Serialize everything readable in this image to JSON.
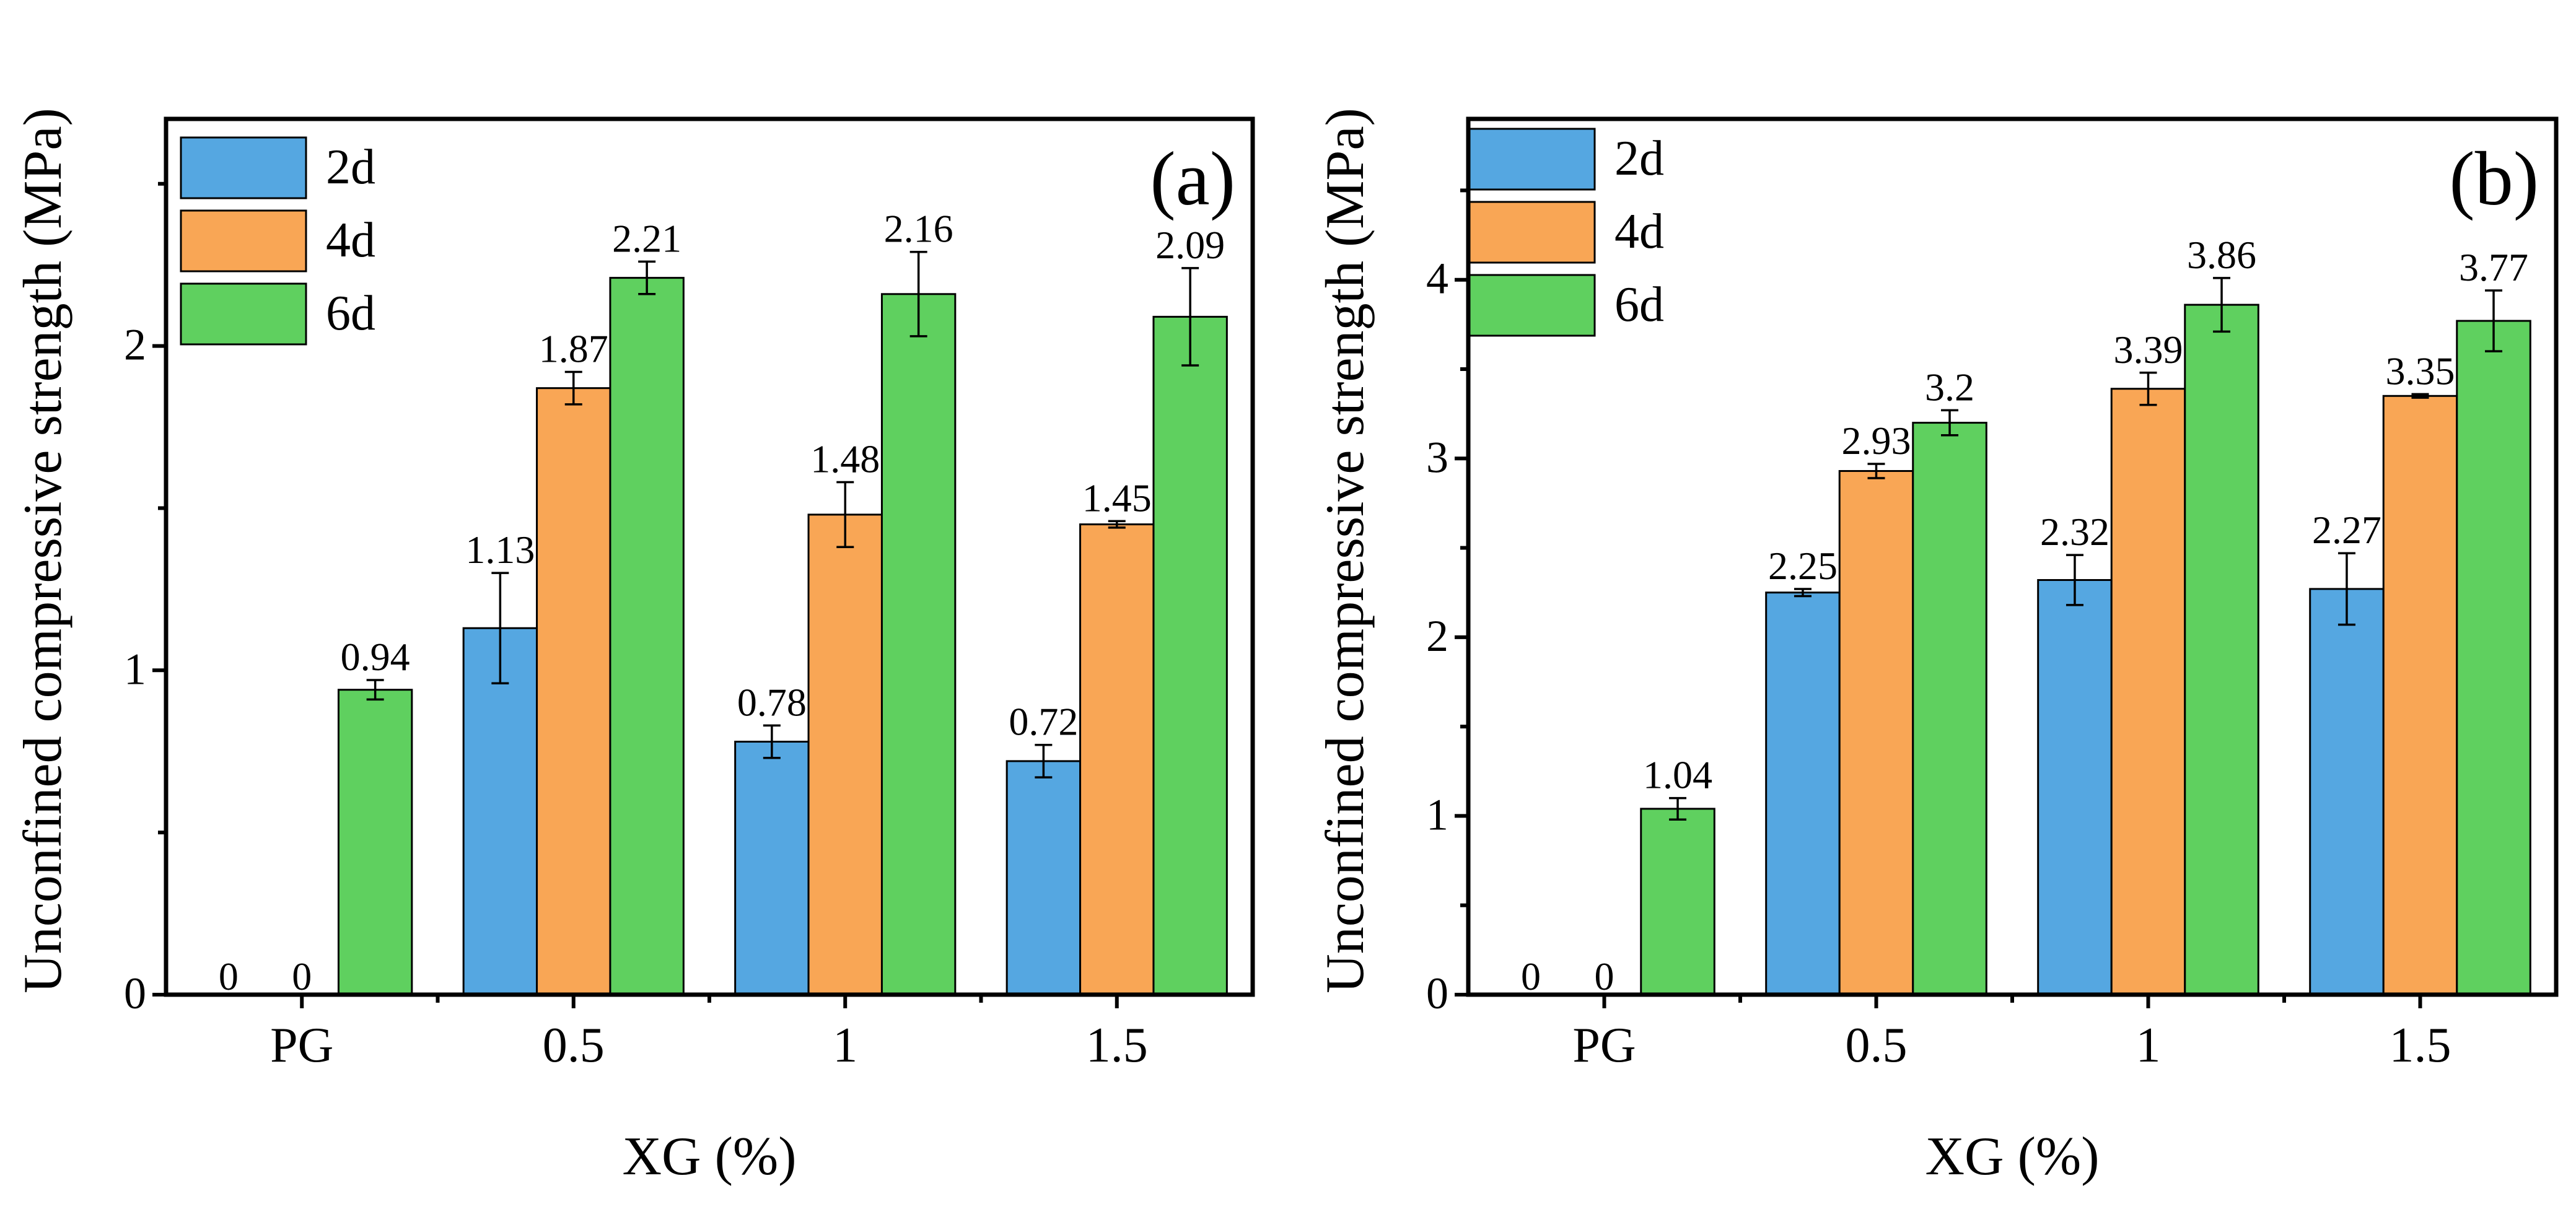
{
  "colors": {
    "2d": "#55a7e1",
    "4d": "#f9a655",
    "6d": "#5fd05f",
    "axis": "#000000"
  },
  "chart_data": [
    {
      "type": "bar",
      "panel_label": "(a)",
      "xlabel": "XG (%)",
      "ylabel": "Unconfined compressive strength (MPa)",
      "categories": [
        "PG",
        "0.5",
        "1",
        "1.5"
      ],
      "ylim": [
        0,
        2.7
      ],
      "yticks": [
        0,
        0.5,
        1,
        1.5,
        2,
        2.5
      ],
      "ytick_labels": [
        "0",
        "",
        "1",
        "",
        "2",
        ""
      ],
      "legend_position": "top-left",
      "series": [
        {
          "name": "2d",
          "values": [
            0,
            1.13,
            0.78,
            0.72
          ],
          "errors": [
            0,
            0.17,
            0.05,
            0.05
          ],
          "labels": [
            "0",
            "1.13",
            "0.78",
            "0.72"
          ]
        },
        {
          "name": "4d",
          "values": [
            0,
            1.87,
            1.48,
            1.45
          ],
          "errors": [
            0,
            0.05,
            0.1,
            0.01
          ],
          "labels": [
            "0",
            "1.87",
            "1.48",
            "1.45"
          ]
        },
        {
          "name": "6d",
          "values": [
            0.94,
            2.21,
            2.16,
            2.09
          ],
          "errors": [
            0.03,
            0.05,
            0.13,
            0.15
          ],
          "labels": [
            "0.94",
            "2.21",
            "2.16",
            "2.09"
          ]
        }
      ]
    },
    {
      "type": "bar",
      "panel_label": "(b)",
      "xlabel": "XG (%)",
      "ylabel": "Unconfined compressive strength (MPa)",
      "categories": [
        "PG",
        "0.5",
        "1",
        "1.5"
      ],
      "ylim": [
        0,
        4.9
      ],
      "yticks": [
        0,
        0.5,
        1,
        1.5,
        2,
        2.5,
        3,
        3.5,
        4,
        4.5
      ],
      "ytick_labels": [
        "0",
        "",
        "1",
        "",
        "2",
        "",
        "3",
        "",
        "4",
        ""
      ],
      "legend_position": "top-left",
      "series": [
        {
          "name": "2d",
          "values": [
            0,
            2.25,
            2.32,
            2.27
          ],
          "errors": [
            0,
            0.02,
            0.14,
            0.2
          ],
          "labels": [
            "0",
            "2.25",
            "2.32",
            "2.27"
          ]
        },
        {
          "name": "4d",
          "values": [
            0,
            2.93,
            3.39,
            3.35
          ],
          "errors": [
            0,
            0.04,
            0.09,
            0.01
          ],
          "labels": [
            "0",
            "2.93",
            "3.39",
            "3.35"
          ]
        },
        {
          "name": "6d",
          "values": [
            1.04,
            3.2,
            3.86,
            3.77
          ],
          "errors": [
            0.06,
            0.07,
            0.15,
            0.17
          ],
          "labels": [
            "1.04",
            "3.2",
            "3.86",
            "3.77"
          ]
        }
      ]
    }
  ]
}
